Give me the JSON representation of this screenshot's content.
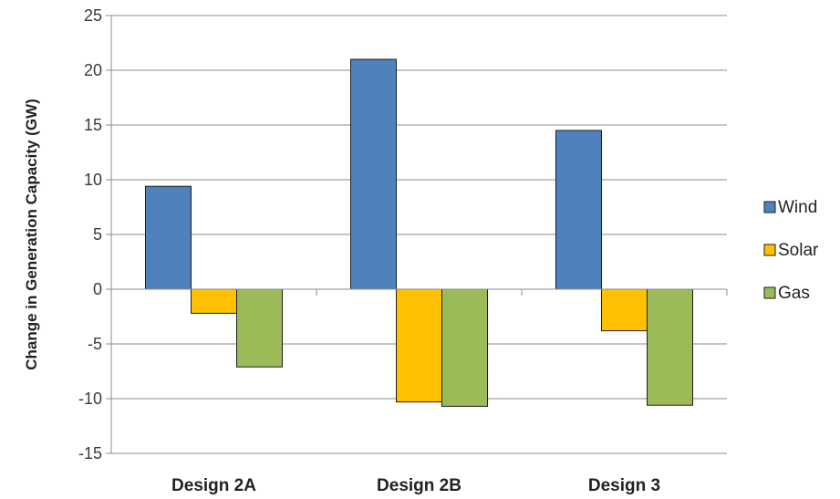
{
  "chart_data": {
    "type": "bar",
    "categories": [
      "Design 2A",
      "Design 2B",
      "Design 3"
    ],
    "series": [
      {
        "name": "Wind",
        "values": [
          9.4,
          21.0,
          14.5
        ],
        "color": "#4f81bd"
      },
      {
        "name": "Solar",
        "values": [
          -2.2,
          -10.3,
          -3.8
        ],
        "color": "#ffc000"
      },
      {
        "name": "Gas",
        "values": [
          -7.1,
          -10.7,
          -10.6
        ],
        "color": "#9bbb59"
      }
    ],
    "ylabel": "Change in Generation Capacity (GW)",
    "xlabel": "",
    "ylim": [
      -15,
      25
    ],
    "yticks": [
      25,
      20,
      15,
      10,
      5,
      0,
      -5,
      -10,
      -15
    ],
    "grid": true,
    "legend": "right"
  }
}
